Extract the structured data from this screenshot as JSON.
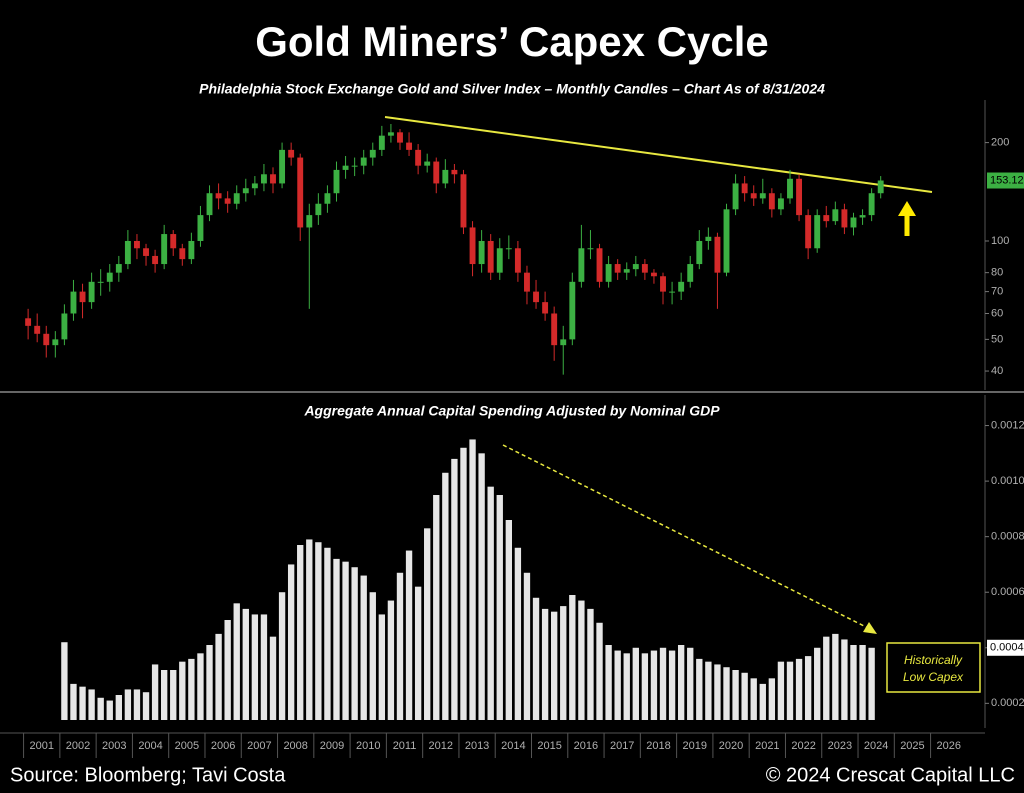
{
  "title": "Gold Miners’ Capex Cycle",
  "footer": {
    "source": "Source: Bloomberg; Tavi Costa",
    "copyright": "© 2024 Crescat Capital LLC"
  },
  "chart_data": [
    {
      "type": "candlestick",
      "title": "Philadelphia Stock Exchange Gold and Silver Index – Monthly Candles – Chart As of 8/31/2024",
      "up_color": "#3cb043",
      "down_color": "#d42a2a",
      "log_scale": true,
      "xlim": [
        2000.35,
        2027.5
      ],
      "ylim": [
        35,
        270
      ],
      "yticks": [
        40,
        50,
        60,
        70,
        80,
        100,
        200
      ],
      "x": [
        2001.125,
        2001.375,
        2001.625,
        2001.875,
        2002.125,
        2002.375,
        2002.625,
        2002.875,
        2003.125,
        2003.375,
        2003.625,
        2003.875,
        2004.125,
        2004.375,
        2004.625,
        2004.875,
        2005.125,
        2005.375,
        2005.625,
        2005.875,
        2006.125,
        2006.375,
        2006.625,
        2006.875,
        2007.125,
        2007.375,
        2007.625,
        2007.875,
        2008.125,
        2008.375,
        2008.625,
        2008.875,
        2009.125,
        2009.375,
        2009.625,
        2009.875,
        2010.125,
        2010.375,
        2010.625,
        2010.875,
        2011.125,
        2011.375,
        2011.625,
        2011.875,
        2012.125,
        2012.375,
        2012.625,
        2012.875,
        2013.125,
        2013.375,
        2013.625,
        2013.875,
        2014.125,
        2014.375,
        2014.625,
        2014.875,
        2015.125,
        2015.375,
        2015.625,
        2015.875,
        2016.125,
        2016.375,
        2016.625,
        2016.875,
        2017.125,
        2017.375,
        2017.625,
        2017.875,
        2018.125,
        2018.375,
        2018.625,
        2018.875,
        2019.125,
        2019.375,
        2019.625,
        2019.875,
        2020.125,
        2020.375,
        2020.625,
        2020.875,
        2021.125,
        2021.375,
        2021.625,
        2021.875,
        2022.125,
        2022.375,
        2022.625,
        2022.875,
        2023.125,
        2023.375,
        2023.625,
        2023.875,
        2024.125,
        2024.375,
        2024.625
      ],
      "ohlc": [
        [
          58,
          62,
          50,
          55
        ],
        [
          55,
          60,
          49,
          52
        ],
        [
          52,
          55,
          44,
          48
        ],
        [
          48,
          53,
          44,
          50
        ],
        [
          50,
          64,
          48,
          60
        ],
        [
          60,
          76,
          57,
          70
        ],
        [
          70,
          74,
          58,
          65
        ],
        [
          65,
          80,
          62,
          75
        ],
        [
          75,
          82,
          68,
          75
        ],
        [
          75,
          85,
          70,
          80
        ],
        [
          80,
          90,
          75,
          85
        ],
        [
          85,
          108,
          82,
          100
        ],
        [
          100,
          105,
          88,
          95
        ],
        [
          95,
          98,
          84,
          90
        ],
        [
          90,
          94,
          80,
          85
        ],
        [
          85,
          112,
          82,
          105
        ],
        [
          105,
          108,
          90,
          95
        ],
        [
          95,
          98,
          84,
          88
        ],
        [
          88,
          106,
          85,
          100
        ],
        [
          100,
          128,
          96,
          120
        ],
        [
          120,
          148,
          115,
          140
        ],
        [
          140,
          150,
          125,
          135
        ],
        [
          135,
          142,
          122,
          130
        ],
        [
          130,
          148,
          125,
          140
        ],
        [
          140,
          155,
          132,
          145
        ],
        [
          145,
          158,
          138,
          150
        ],
        [
          150,
          172,
          142,
          160
        ],
        [
          160,
          168,
          140,
          150
        ],
        [
          150,
          200,
          145,
          190
        ],
        [
          190,
          200,
          170,
          180
        ],
        [
          180,
          185,
          100,
          110
        ],
        [
          110,
          130,
          62,
          120
        ],
        [
          120,
          140,
          112,
          130
        ],
        [
          130,
          148,
          122,
          140
        ],
        [
          140,
          175,
          132,
          165
        ],
        [
          165,
          182,
          155,
          170
        ],
        [
          170,
          180,
          158,
          170
        ],
        [
          170,
          190,
          160,
          180
        ],
        [
          180,
          200,
          170,
          190
        ],
        [
          190,
          225,
          182,
          210
        ],
        [
          210,
          228,
          200,
          215
        ],
        [
          215,
          220,
          190,
          200
        ],
        [
          200,
          215,
          182,
          190
        ],
        [
          190,
          198,
          160,
          170
        ],
        [
          170,
          185,
          162,
          175
        ],
        [
          175,
          180,
          140,
          150
        ],
        [
          150,
          178,
          145,
          165
        ],
        [
          165,
          172,
          150,
          160
        ],
        [
          160,
          165,
          105,
          110
        ],
        [
          110,
          115,
          78,
          85
        ],
        [
          85,
          108,
          80,
          100
        ],
        [
          100,
          105,
          76,
          80
        ],
        [
          80,
          102,
          76,
          95
        ],
        [
          95,
          104,
          88,
          95
        ],
        [
          95,
          100,
          75,
          80
        ],
        [
          80,
          84,
          64,
          70
        ],
        [
          70,
          76,
          62,
          65
        ],
        [
          65,
          70,
          57,
          60
        ],
        [
          60,
          63,
          43,
          48
        ],
        [
          48,
          55,
          39,
          50
        ],
        [
          50,
          80,
          48,
          75
        ],
        [
          75,
          112,
          72,
          95
        ],
        [
          95,
          108,
          88,
          95
        ],
        [
          95,
          98,
          72,
          75
        ],
        [
          75,
          90,
          72,
          85
        ],
        [
          85,
          88,
          76,
          80
        ],
        [
          80,
          86,
          76,
          82
        ],
        [
          82,
          90,
          78,
          85
        ],
        [
          85,
          88,
          76,
          80
        ],
        [
          80,
          82,
          74,
          78
        ],
        [
          78,
          80,
          64,
          70
        ],
        [
          70,
          75,
          64,
          70
        ],
        [
          70,
          80,
          66,
          75
        ],
        [
          75,
          90,
          72,
          85
        ],
        [
          85,
          108,
          82,
          100
        ],
        [
          100,
          110,
          94,
          103
        ],
        [
          103,
          106,
          62,
          80
        ],
        [
          80,
          130,
          78,
          125
        ],
        [
          125,
          160,
          120,
          150
        ],
        [
          150,
          158,
          132,
          140
        ],
        [
          140,
          148,
          128,
          135
        ],
        [
          135,
          155,
          130,
          140
        ],
        [
          140,
          145,
          118,
          125
        ],
        [
          125,
          140,
          120,
          135
        ],
        [
          135,
          165,
          130,
          155
        ],
        [
          155,
          160,
          115,
          120
        ],
        [
          120,
          125,
          88,
          95
        ],
        [
          95,
          125,
          92,
          120
        ],
        [
          120,
          128,
          110,
          115
        ],
        [
          115,
          132,
          112,
          125
        ],
        [
          125,
          130,
          105,
          110
        ],
        [
          110,
          122,
          104,
          118
        ],
        [
          118,
          125,
          112,
          120
        ],
        [
          120,
          145,
          115,
          140
        ],
        [
          140,
          158,
          135,
          153.12
        ]
      ]
    },
    {
      "type": "bar",
      "title": "Aggregate Annual Capital Spending Adjusted by Nominal GDP",
      "color": "#e6e6e6",
      "xlim": [
        2000.35,
        2027.5
      ],
      "xticks": [
        2001,
        2002,
        2003,
        2004,
        2005,
        2006,
        2007,
        2008,
        2009,
        2010,
        2011,
        2012,
        2013,
        2014,
        2015,
        2016,
        2017,
        2018,
        2019,
        2020,
        2021,
        2022,
        2023,
        2024,
        2025,
        2026
      ],
      "ylim": [
        0.00014,
        0.00122
      ],
      "yticks": [
        0.0002,
        0.0004,
        0.0006,
        0.0008,
        {
          "value": 0.001,
          "label": "0.0010"
        },
        0.0012
      ],
      "current_label": "0.0004",
      "annotation": [
        "Historically",
        "Low Capex"
      ],
      "x": [
        2002.125,
        2002.375,
        2002.625,
        2002.875,
        2003.125,
        2003.375,
        2003.625,
        2003.875,
        2004.125,
        2004.375,
        2004.625,
        2004.875,
        2005.125,
        2005.375,
        2005.625,
        2005.875,
        2006.125,
        2006.375,
        2006.625,
        2006.875,
        2007.125,
        2007.375,
        2007.625,
        2007.875,
        2008.125,
        2008.375,
        2008.625,
        2008.875,
        2009.125,
        2009.375,
        2009.625,
        2009.875,
        2010.125,
        2010.375,
        2010.625,
        2010.875,
        2011.125,
        2011.375,
        2011.625,
        2011.875,
        2012.125,
        2012.375,
        2012.625,
        2012.875,
        2013.125,
        2013.375,
        2013.625,
        2013.875,
        2014.125,
        2014.375,
        2014.625,
        2014.875,
        2015.125,
        2015.375,
        2015.625,
        2015.875,
        2016.125,
        2016.375,
        2016.625,
        2016.875,
        2017.125,
        2017.375,
        2017.625,
        2017.875,
        2018.125,
        2018.375,
        2018.625,
        2018.875,
        2019.125,
        2019.375,
        2019.625,
        2019.875,
        2020.125,
        2020.375,
        2020.625,
        2020.875,
        2021.125,
        2021.375,
        2021.625,
        2021.875,
        2022.125,
        2022.375,
        2022.625,
        2022.875,
        2023.125,
        2023.375,
        2023.625,
        2023.875,
        2024.125,
        2024.375
      ],
      "values": [
        0.00042,
        0.00027,
        0.00026,
        0.00025,
        0.00022,
        0.00021,
        0.00023,
        0.00025,
        0.00025,
        0.00024,
        0.00034,
        0.00032,
        0.00032,
        0.00035,
        0.00036,
        0.00038,
        0.00041,
        0.00045,
        0.0005,
        0.00056,
        0.00054,
        0.00052,
        0.00052,
        0.00044,
        0.0006,
        0.0007,
        0.00077,
        0.00079,
        0.00078,
        0.00076,
        0.00072,
        0.00071,
        0.00069,
        0.00066,
        0.0006,
        0.00052,
        0.00057,
        0.00067,
        0.00075,
        0.00062,
        0.00083,
        0.00095,
        0.00103,
        0.00108,
        0.00112,
        0.00115,
        0.0011,
        0.00098,
        0.00095,
        0.00086,
        0.00076,
        0.00067,
        0.00058,
        0.00054,
        0.00053,
        0.00055,
        0.00059,
        0.00057,
        0.00054,
        0.00049,
        0.00041,
        0.00039,
        0.00038,
        0.0004,
        0.00038,
        0.00039,
        0.0004,
        0.00039,
        0.00041,
        0.0004,
        0.00036,
        0.00035,
        0.00034,
        0.00033,
        0.00032,
        0.00031,
        0.00029,
        0.00027,
        0.00029,
        0.00035,
        0.00035,
        0.00036,
        0.00037,
        0.0004,
        0.00044,
        0.00045,
        0.00043,
        0.00041,
        0.00041,
        0.0004
      ]
    }
  ]
}
